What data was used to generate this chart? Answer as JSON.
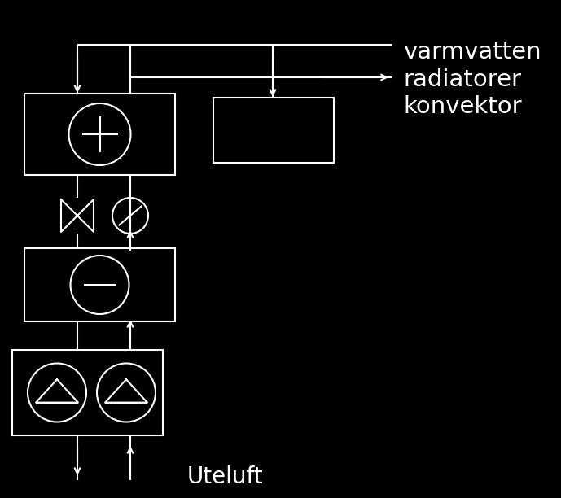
{
  "bg_color": "#000000",
  "line_color": "#ffffff",
  "text_color": "#ffffff",
  "label_uteluft": "Uteluft",
  "label_right": "varmvatten\nradiatorer\nkonvektor",
  "fig_width": 6.89,
  "fig_height": 6.12,
  "dpi": 100
}
